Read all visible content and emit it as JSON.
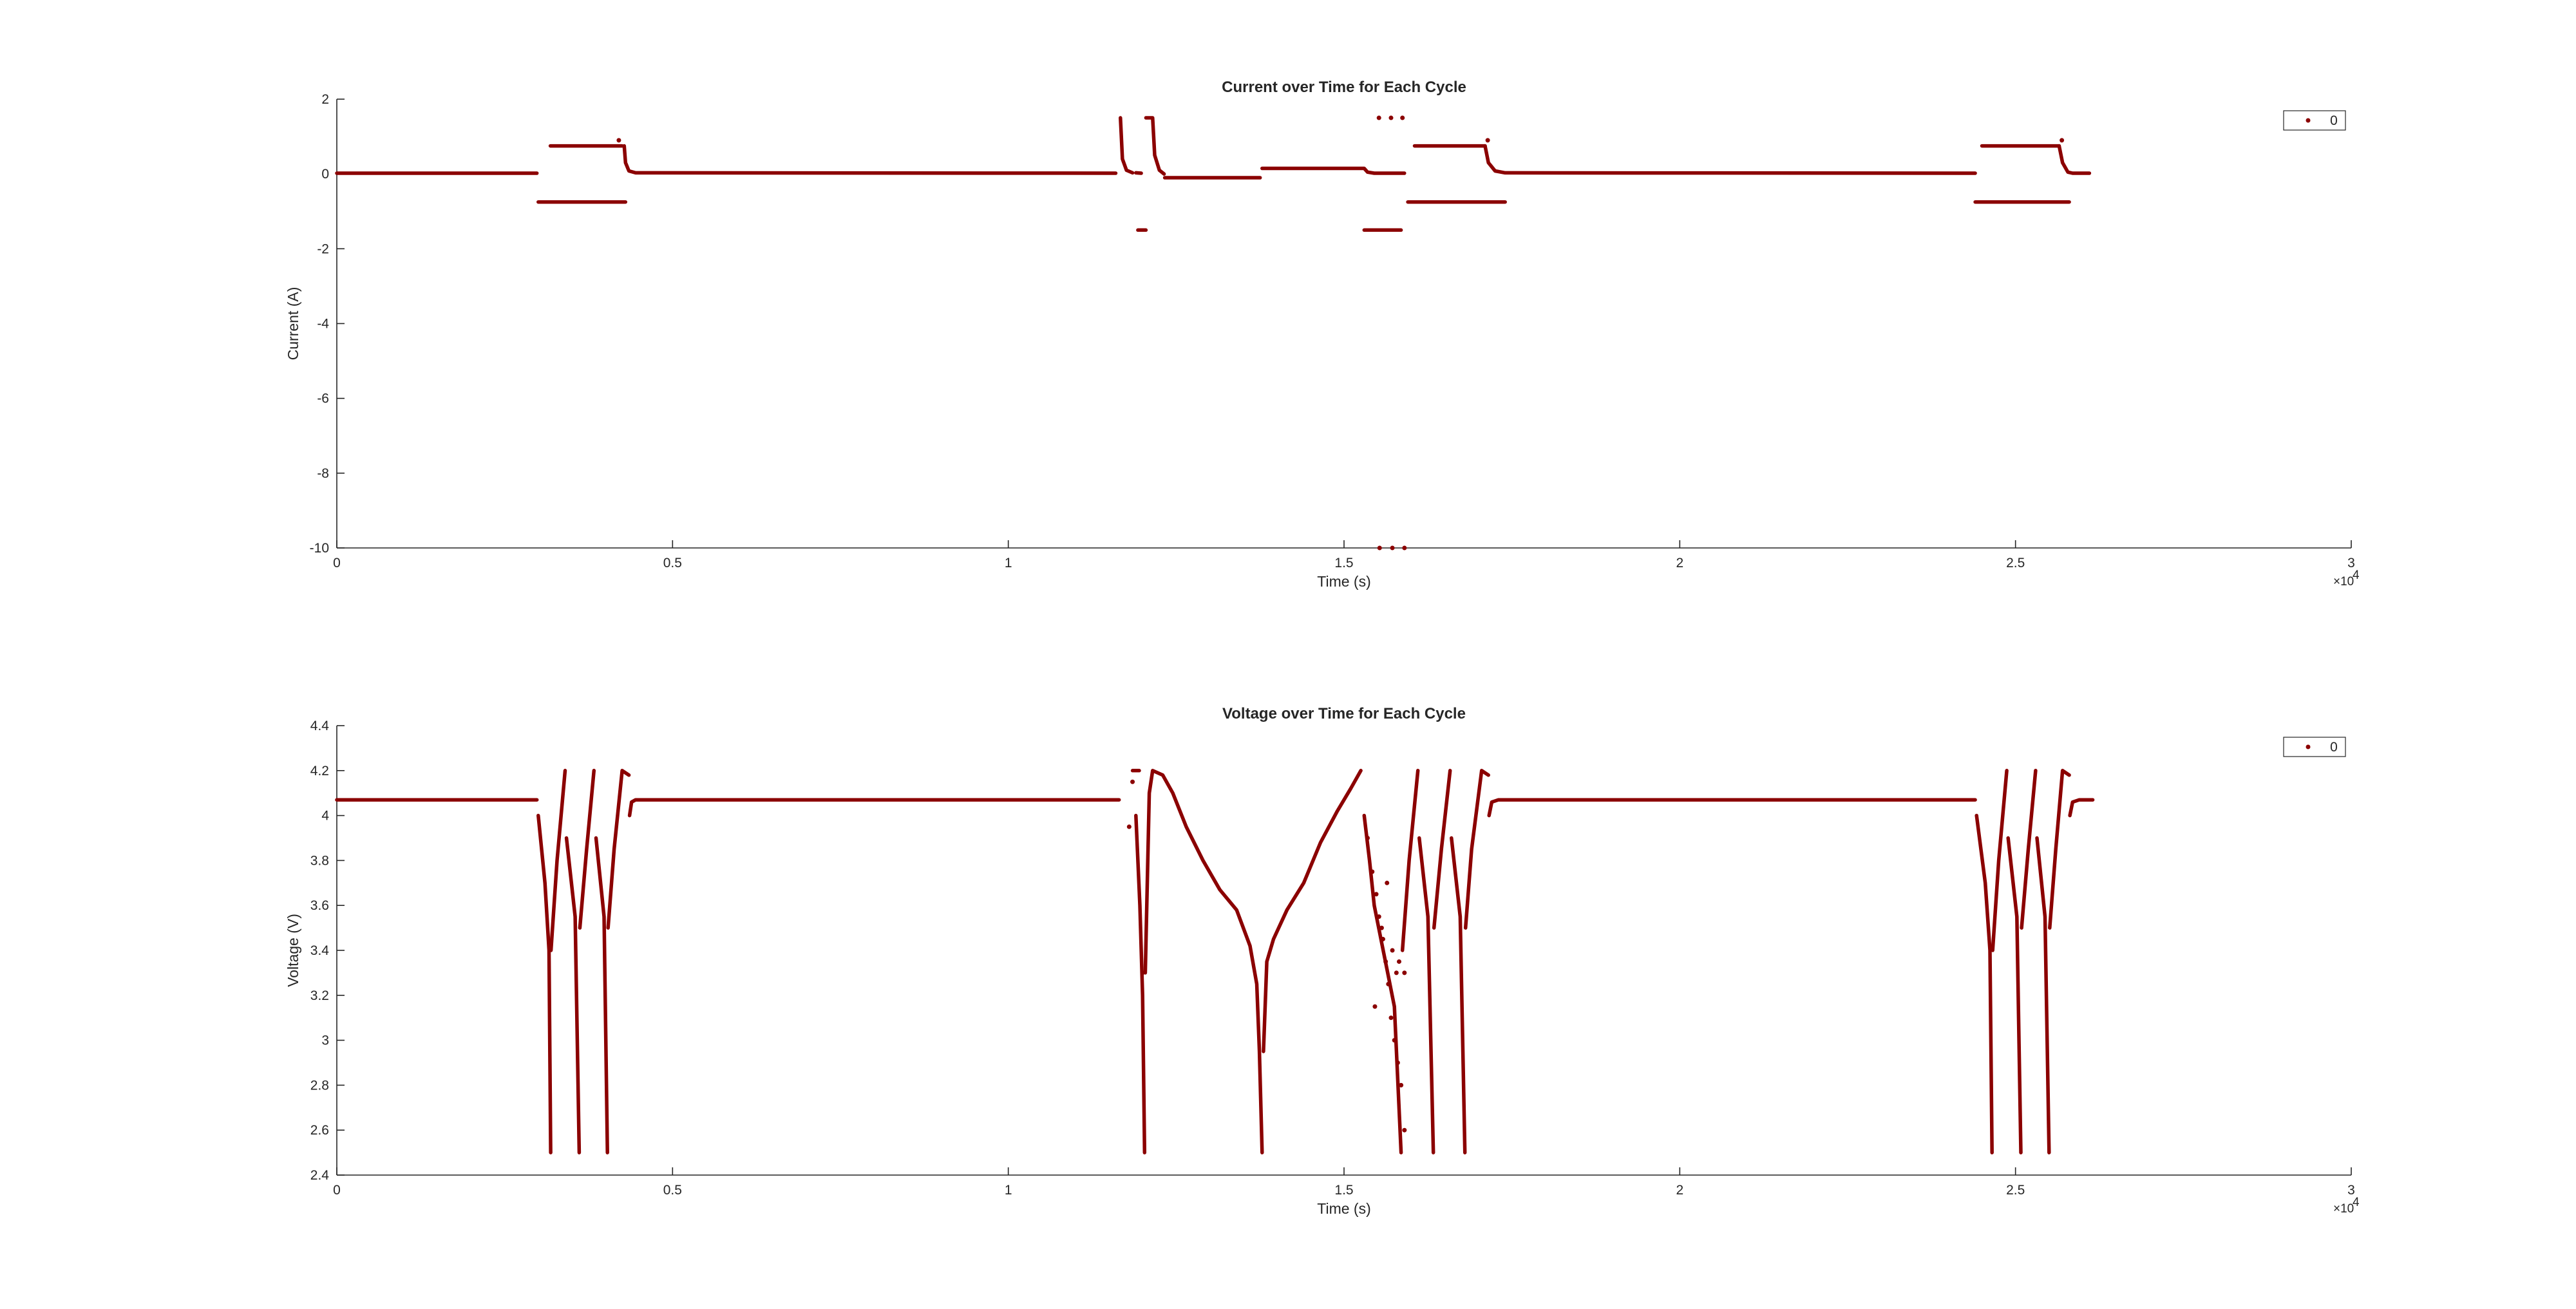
{
  "chart_data": [
    {
      "type": "scatter",
      "title": "Current over Time for Each Cycle",
      "xlabel": "Time (s)",
      "ylabel": "Current (A)",
      "xlim": [
        0,
        30000
      ],
      "ylim": [
        -10,
        2
      ],
      "x_ticks": [
        0,
        5000,
        10000,
        15000,
        20000,
        25000,
        30000
      ],
      "x_tick_labels": [
        "0",
        "0.5",
        "1",
        "1.5",
        "2",
        "2.5",
        "3"
      ],
      "x_exponent_label": "×10",
      "x_exponent_power": "4",
      "y_ticks": [
        -10,
        -8,
        -6,
        -4,
        -2,
        0,
        2
      ],
      "y_tick_labels": [
        "-10",
        "-8",
        "-6",
        "-4",
        "-2",
        "0",
        "2"
      ],
      "legend": "top-right",
      "grid": false,
      "marker_color": "#8b0000",
      "series": [
        {
          "name": "0",
          "segments": [
            [
              [
                0,
                0.02
              ],
              [
                2980,
                0.02
              ]
            ],
            [
              [
                3180,
                0.75
              ],
              [
                4250,
                0.75
              ]
            ],
            [
              [
                3000,
                -0.75
              ],
              [
                4300,
                -0.75
              ]
            ],
            [
              [
                4280,
                0.75
              ],
              [
                4300,
                0.3
              ],
              [
                4350,
                0.08
              ],
              [
                4450,
                0.03
              ],
              [
                11600,
                0.02
              ]
            ],
            [
              [
                11670,
                1.5
              ],
              [
                11700,
                0.4
              ],
              [
                11760,
                0.1
              ],
              [
                11850,
                0.03
              ]
            ],
            [
              [
                11900,
                0.03
              ],
              [
                11980,
                0.02
              ]
            ],
            [
              [
                11930,
                -1.5
              ],
              [
                12050,
                -1.5
              ]
            ],
            [
              [
                12050,
                1.5
              ],
              [
                12150,
                1.5
              ],
              [
                12180,
                0.5
              ],
              [
                12250,
                0.1
              ],
              [
                12320,
                0.0
              ]
            ],
            [
              [
                12330,
                -0.1
              ],
              [
                13750,
                -0.1
              ]
            ],
            [
              [
                13780,
                0.15
              ],
              [
                15300,
                0.15
              ],
              [
                15350,
                0.05
              ],
              [
                15450,
                0.02
              ],
              [
                15900,
                0.02
              ]
            ],
            [
              [
                15300,
                -1.5
              ],
              [
                15850,
                -1.5
              ]
            ],
            [
              [
                16050,
                0.75
              ],
              [
                17100,
                0.75
              ]
            ],
            [
              [
                15950,
                -0.75
              ],
              [
                17400,
                -0.75
              ]
            ],
            [
              [
                17100,
                0.75
              ],
              [
                17150,
                0.3
              ],
              [
                17250,
                0.08
              ],
              [
                17400,
                0.03
              ],
              [
                24400,
                0.02
              ]
            ],
            [
              [
                24500,
                0.75
              ],
              [
                25650,
                0.75
              ]
            ],
            [
              [
                24400,
                -0.75
              ],
              [
                25800,
                -0.75
              ]
            ],
            [
              [
                25650,
                0.75
              ],
              [
                25700,
                0.3
              ],
              [
                25780,
                0.05
              ],
              [
                25850,
                0.02
              ],
              [
                26100,
                0.02
              ]
            ]
          ],
          "points": [
            [
              15520,
              1.5
            ],
            [
              15700,
              1.5
            ],
            [
              15870,
              1.5
            ],
            [
              15530,
              -10
            ],
            [
              15720,
              -10
            ],
            [
              15900,
              -10
            ],
            [
              4200,
              0.9
            ],
            [
              17140,
              0.9
            ],
            [
              25690,
              0.9
            ]
          ]
        }
      ]
    },
    {
      "type": "scatter",
      "title": "Voltage over Time for Each Cycle",
      "xlabel": "Time (s)",
      "ylabel": "Voltage (V)",
      "xlim": [
        0,
        30000
      ],
      "ylim": [
        2.4,
        4.4
      ],
      "x_ticks": [
        0,
        5000,
        10000,
        15000,
        20000,
        25000,
        30000
      ],
      "x_tick_labels": [
        "0",
        "0.5",
        "1",
        "1.5",
        "2",
        "2.5",
        "3"
      ],
      "x_exponent_label": "×10",
      "x_exponent_power": "4",
      "y_ticks": [
        2.4,
        2.6,
        2.8,
        3.0,
        3.2,
        3.4,
        3.6,
        3.8,
        4.0,
        4.2,
        4.4
      ],
      "y_tick_labels": [
        "2.4",
        "2.6",
        "2.8",
        "3",
        "3.2",
        "3.4",
        "3.6",
        "3.8",
        "4",
        "4.2",
        "4.4"
      ],
      "legend": "top-right",
      "grid": false,
      "marker_color": "#8b0000",
      "series": [
        {
          "name": "0",
          "segments": [
            [
              [
                0,
                4.07
              ],
              [
                2980,
                4.07
              ]
            ],
            [
              [
                3000,
                4.0
              ],
              [
                3100,
                3.7
              ],
              [
                3160,
                3.4
              ],
              [
                3185,
                2.5
              ]
            ],
            [
              [
                3190,
                3.4
              ],
              [
                3280,
                3.8
              ],
              [
                3400,
                4.2
              ]
            ],
            [
              [
                3420,
                3.9
              ],
              [
                3550,
                3.55
              ],
              [
                3610,
                2.5
              ]
            ],
            [
              [
                3620,
                3.5
              ],
              [
                3720,
                3.85
              ],
              [
                3830,
                4.2
              ]
            ],
            [
              [
                3860,
                3.9
              ],
              [
                3980,
                3.55
              ],
              [
                4030,
                2.5
              ]
            ],
            [
              [
                4040,
                3.5
              ],
              [
                4130,
                3.85
              ],
              [
                4250,
                4.2
              ],
              [
                4350,
                4.18
              ]
            ],
            [
              [
                4360,
                4.0
              ],
              [
                4390,
                4.06
              ],
              [
                4450,
                4.07
              ],
              [
                11650,
                4.07
              ]
            ],
            [
              [
                11850,
                4.2
              ],
              [
                11950,
                4.2
              ]
            ],
            [
              [
                11900,
                4.0
              ],
              [
                11960,
                3.6
              ],
              [
                12000,
                3.2
              ],
              [
                12030,
                2.5
              ]
            ],
            [
              [
                12040,
                3.3
              ],
              [
                12100,
                4.1
              ],
              [
                12150,
                4.2
              ],
              [
                12300,
                4.18
              ],
              [
                12450,
                4.1
              ],
              [
                12650,
                3.95
              ],
              [
                12900,
                3.8
              ],
              [
                13150,
                3.67
              ],
              [
                13400,
                3.58
              ],
              [
                13600,
                3.42
              ],
              [
                13700,
                3.25
              ],
              [
                13740,
                2.95
              ],
              [
                13780,
                2.5
              ]
            ],
            [
              [
                13800,
                2.95
              ],
              [
                13850,
                3.35
              ],
              [
                13950,
                3.45
              ],
              [
                14150,
                3.58
              ],
              [
                14400,
                3.7
              ],
              [
                14650,
                3.88
              ],
              [
                14900,
                4.02
              ],
              [
                15100,
                4.12
              ],
              [
                15250,
                4.2
              ]
            ],
            [
              [
                15300,
                4.0
              ],
              [
                15380,
                3.8
              ],
              [
                15450,
                3.6
              ],
              [
                15550,
                3.45
              ],
              [
                15650,
                3.3
              ],
              [
                15750,
                3.15
              ],
              [
                15850,
                2.5
              ]
            ],
            [
              [
                15870,
                3.4
              ],
              [
                15970,
                3.8
              ],
              [
                16100,
                4.2
              ]
            ],
            [
              [
                16120,
                3.9
              ],
              [
                16250,
                3.55
              ],
              [
                16330,
                2.5
              ]
            ],
            [
              [
                16340,
                3.5
              ],
              [
                16450,
                3.85
              ],
              [
                16580,
                4.2
              ]
            ],
            [
              [
                16600,
                3.9
              ],
              [
                16730,
                3.55
              ],
              [
                16800,
                2.5
              ]
            ],
            [
              [
                16810,
                3.5
              ],
              [
                16900,
                3.85
              ],
              [
                17050,
                4.2
              ],
              [
                17150,
                4.18
              ]
            ],
            [
              [
                17160,
                4.0
              ],
              [
                17200,
                4.06
              ],
              [
                17300,
                4.07
              ],
              [
                24400,
                4.07
              ]
            ],
            [
              [
                24420,
                4.0
              ],
              [
                24550,
                3.7
              ],
              [
                24620,
                3.4
              ],
              [
                24650,
                2.5
              ]
            ],
            [
              [
                24660,
                3.4
              ],
              [
                24750,
                3.8
              ],
              [
                24870,
                4.2
              ]
            ],
            [
              [
                24890,
                3.9
              ],
              [
                25020,
                3.55
              ],
              [
                25080,
                2.5
              ]
            ],
            [
              [
                25090,
                3.5
              ],
              [
                25190,
                3.85
              ],
              [
                25300,
                4.2
              ]
            ],
            [
              [
                25320,
                3.9
              ],
              [
                25440,
                3.55
              ],
              [
                25500,
                2.5
              ]
            ],
            [
              [
                25510,
                3.5
              ],
              [
                25600,
                3.85
              ],
              [
                25700,
                4.2
              ],
              [
                25800,
                4.18
              ]
            ],
            [
              [
                25810,
                4.0
              ],
              [
                25850,
                4.06
              ],
              [
                25950,
                4.07
              ],
              [
                26150,
                4.07
              ]
            ]
          ],
          "points": [
            [
              11800,
              3.95
            ],
            [
              11850,
              4.15
            ],
            [
              12000,
              3.3
            ],
            [
              15350,
              3.9
            ],
            [
              15420,
              3.75
            ],
            [
              15480,
              3.65
            ],
            [
              15520,
              3.55
            ],
            [
              15580,
              3.45
            ],
            [
              15620,
              3.35
            ],
            [
              15660,
              3.25
            ],
            [
              15700,
              3.1
            ],
            [
              15750,
              3.0
            ],
            [
              15800,
              2.9
            ],
            [
              15850,
              2.8
            ],
            [
              15900,
              2.6
            ],
            [
              15560,
              3.5
            ],
            [
              15640,
              3.7
            ],
            [
              15720,
              3.4
            ],
            [
              15780,
              3.3
            ],
            [
              15820,
              3.35
            ],
            [
              15900,
              3.3
            ],
            [
              15460,
              3.15
            ]
          ]
        }
      ]
    }
  ]
}
